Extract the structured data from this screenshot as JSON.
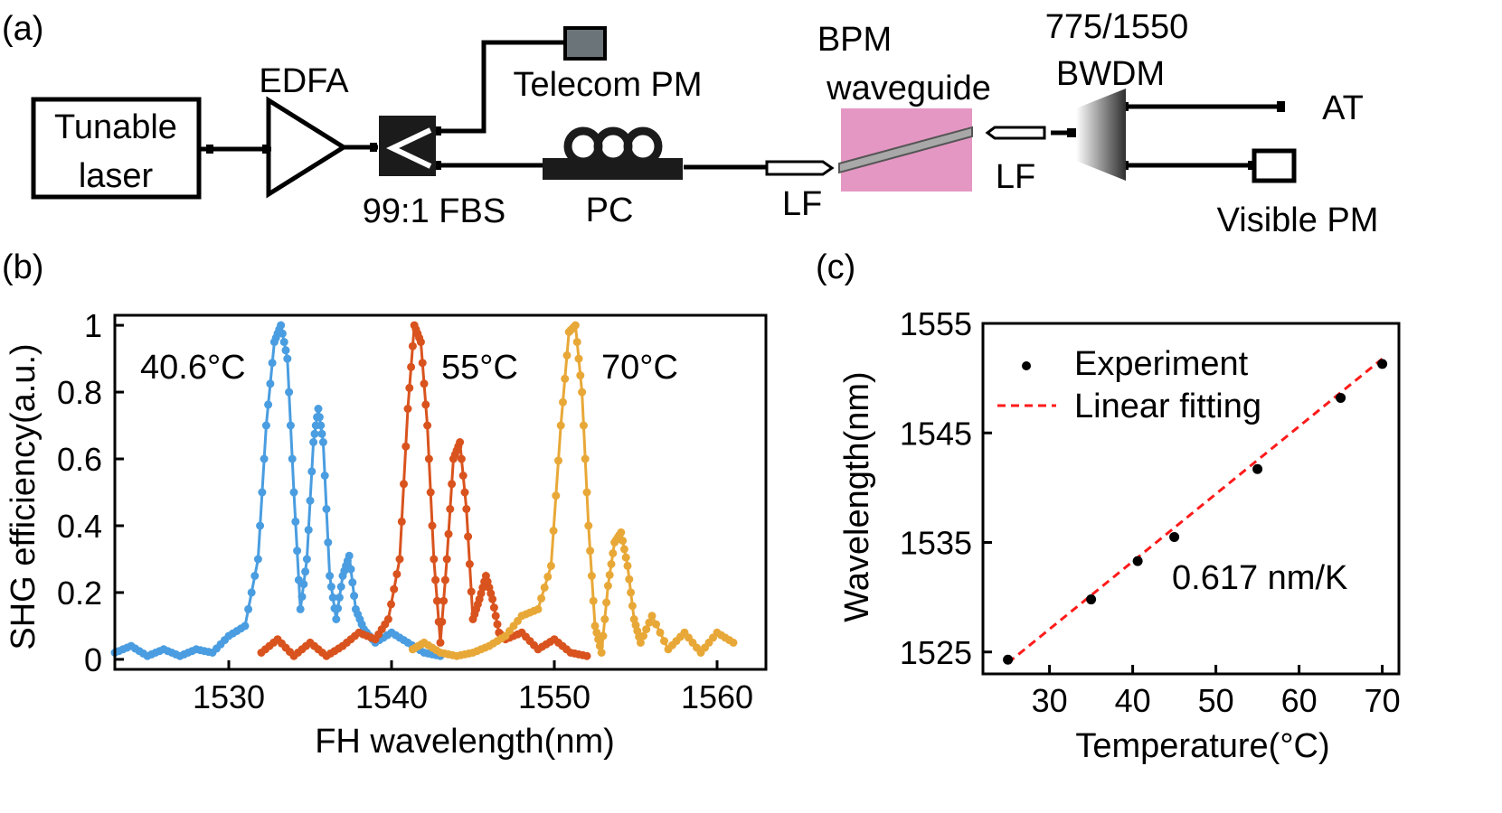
{
  "panel_labels": {
    "a": "(a)",
    "b": "(b)",
    "c": "(c)"
  },
  "setup": {
    "tunable_laser": [
      "Tunable",
      "laser"
    ],
    "edfa": "EDFA",
    "telecom_pm": "Telecom PM",
    "fbs": "99:1 FBS",
    "pc": "PC",
    "lf_in": "LF",
    "bpm": [
      "BPM",
      "waveguide"
    ],
    "lf_out": "LF",
    "bwdm": [
      "775/1550",
      "BWDM"
    ],
    "at": "AT",
    "visible_pm": "Visible PM"
  },
  "colors": {
    "blue": "#4a9de0",
    "red": "#d9531e",
    "yellow": "#e8a838",
    "fit": "#ff1a1a",
    "waveguide": "#e597c3",
    "telecom_pm": "#6b7479"
  },
  "chart_data": [
    {
      "type": "line",
      "xlabel": "FH wavelength(nm)",
      "ylabel": "SHG efficiency(a.u.)",
      "xlim": [
        1523,
        1563
      ],
      "ylim": [
        -0.03,
        1.03
      ],
      "xticks": [
        "1530",
        "1540",
        "1550",
        "1560"
      ],
      "yticks": [
        "0",
        "0.2",
        "0.4",
        "0.6",
        "0.8",
        "1"
      ],
      "series": [
        {
          "name": "40.6°C",
          "color_key": "blue",
          "x": [
            1523,
            1524,
            1525,
            1526,
            1527,
            1528,
            1529,
            1530,
            1531,
            1531.8,
            1532.3,
            1532.8,
            1533.2,
            1533.6,
            1534,
            1534.4,
            1534.8,
            1535.2,
            1535.5,
            1535.8,
            1536.2,
            1536.6,
            1537,
            1537.4,
            1537.8,
            1538.3,
            1539,
            1540,
            1541,
            1542,
            1543
          ],
          "values": [
            0.02,
            0.04,
            0.01,
            0.03,
            0.01,
            0.03,
            0.02,
            0.07,
            0.1,
            0.3,
            0.7,
            0.95,
            1.0,
            0.9,
            0.5,
            0.15,
            0.3,
            0.65,
            0.75,
            0.65,
            0.25,
            0.12,
            0.25,
            0.31,
            0.15,
            0.09,
            0.05,
            0.08,
            0.05,
            0.02,
            0.01
          ]
        },
        {
          "name": "55°C",
          "color_key": "red",
          "x": [
            1532,
            1533,
            1534,
            1535,
            1536,
            1537,
            1538,
            1539,
            1539.8,
            1540.5,
            1541,
            1541.4,
            1541.8,
            1542.2,
            1542.6,
            1543,
            1543.4,
            1543.8,
            1544.2,
            1544.6,
            1545,
            1545.4,
            1545.8,
            1546.2,
            1546.6,
            1547,
            1548,
            1549,
            1550,
            1551,
            1552
          ],
          "values": [
            0.02,
            0.06,
            0.01,
            0.05,
            0.01,
            0.04,
            0.08,
            0.06,
            0.12,
            0.3,
            0.75,
            1.0,
            0.95,
            0.7,
            0.3,
            0.05,
            0.3,
            0.6,
            0.65,
            0.45,
            0.12,
            0.18,
            0.25,
            0.18,
            0.08,
            0.06,
            0.08,
            0.03,
            0.06,
            0.02,
            0.01
          ]
        },
        {
          "name": "70°C",
          "color_key": "yellow",
          "x": [
            1541.3,
            1542,
            1543,
            1544,
            1545,
            1546,
            1547,
            1548,
            1549,
            1549.8,
            1550.4,
            1550.9,
            1551.3,
            1551.7,
            1552.1,
            1552.5,
            1552.9,
            1553.3,
            1553.7,
            1554.1,
            1554.5,
            1554.9,
            1555.3,
            1556,
            1557,
            1558,
            1559,
            1560,
            1561
          ],
          "values": [
            0.03,
            0.05,
            0.02,
            0.01,
            0.02,
            0.04,
            0.07,
            0.13,
            0.15,
            0.28,
            0.7,
            0.98,
            1.0,
            0.8,
            0.4,
            0.1,
            0.02,
            0.22,
            0.35,
            0.38,
            0.28,
            0.12,
            0.05,
            0.13,
            0.03,
            0.08,
            0.02,
            0.08,
            0.05
          ]
        }
      ],
      "annotations": [
        "40.6°C",
        "55°C",
        "70°C"
      ]
    },
    {
      "type": "scatter",
      "xlabel": "Temperature(°C)",
      "ylabel": "Wavelength(nm)",
      "xlim": [
        22,
        72
      ],
      "ylim": [
        1523,
        1555
      ],
      "xticks": [
        "30",
        "40",
        "50",
        "60",
        "70"
      ],
      "yticks": [
        "1525",
        "1535",
        "1545",
        "1555"
      ],
      "legend": [
        "Experiment",
        "Linear fitting"
      ],
      "legend_position": "top-left",
      "annotation": "0.617 nm/K",
      "series": [
        {
          "name": "Experiment",
          "x": [
            25,
            35,
            40.6,
            45,
            55,
            65,
            70
          ],
          "values": [
            1524.3,
            1529.8,
            1533.3,
            1535.5,
            1541.7,
            1548.2,
            1551.3
          ]
        }
      ],
      "fit": {
        "name": "Linear fitting",
        "x": [
          25,
          70
        ],
        "values": [
          1524.0,
          1551.77
        ],
        "slope": 0.617
      }
    }
  ]
}
